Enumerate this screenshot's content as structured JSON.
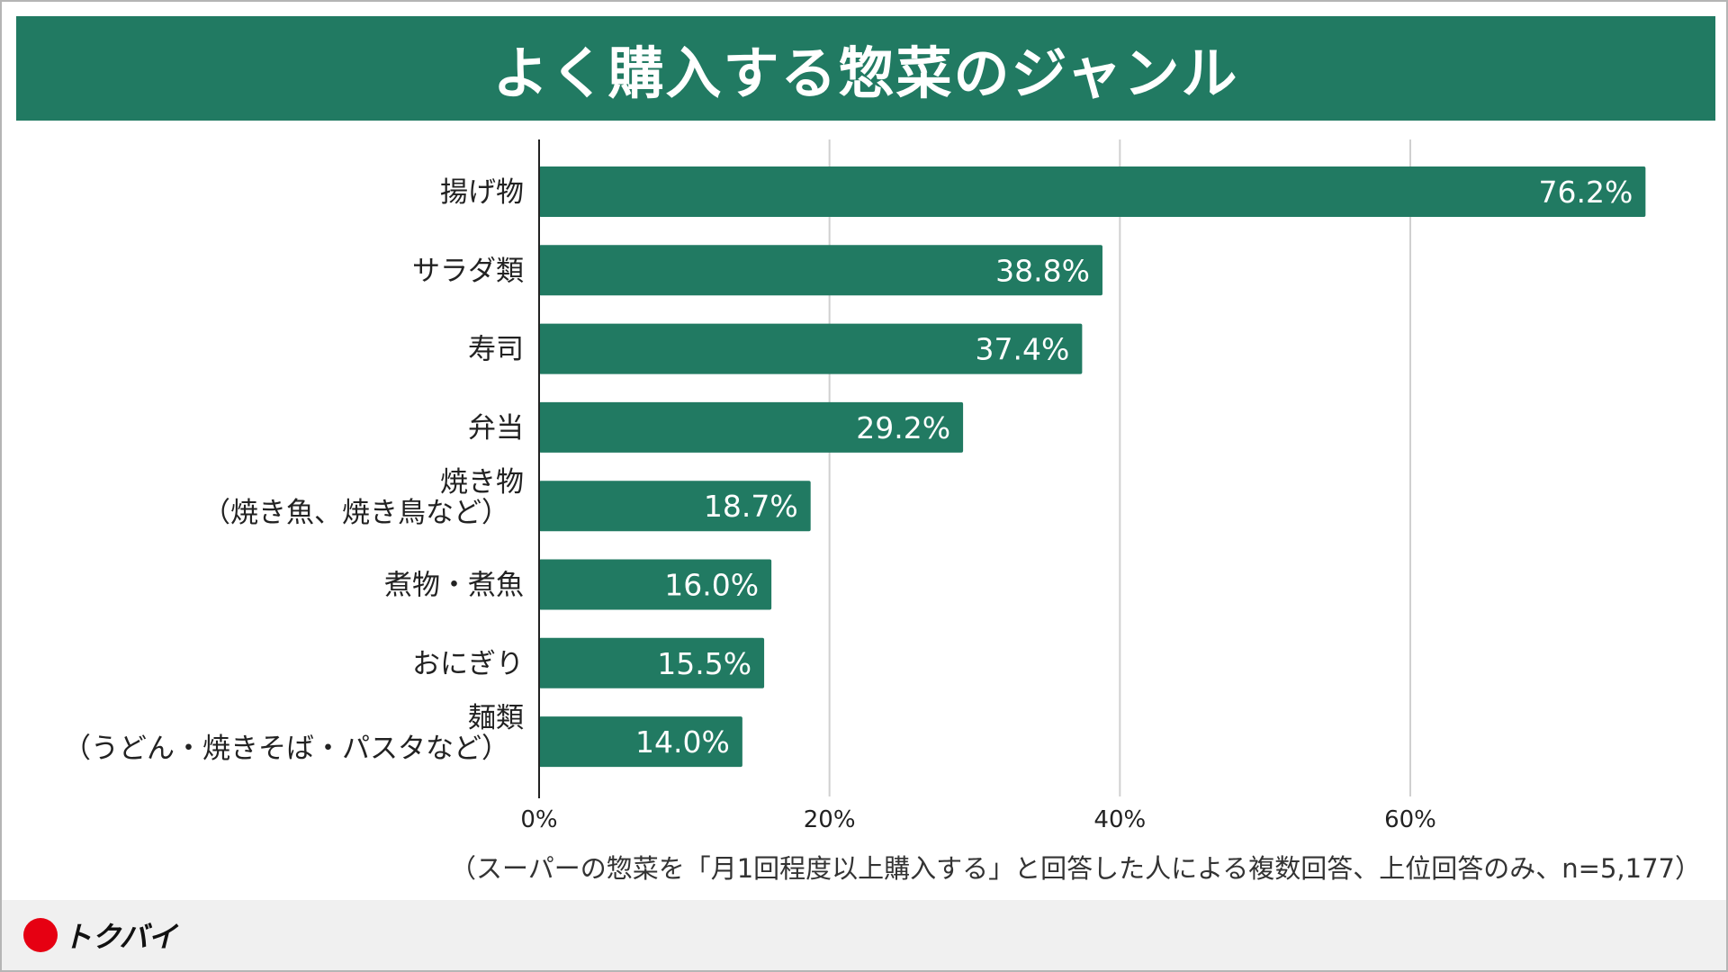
{
  "title": "よく購入する惣菜のジャンル",
  "note": "（スーパーの惣菜を「月1回程度以上購入する」と回答した人による複数回答、上位回答のみ、n=5,177）",
  "logo": {
    "text": "トクバイ",
    "dot_color": "#e60012"
  },
  "colors": {
    "bar": "#217a62",
    "banner": "#217a62",
    "grid": "#d0d0d0",
    "axis": "#222222"
  },
  "chart_data": {
    "type": "bar",
    "orientation": "horizontal",
    "categories": [
      [
        "揚げ物"
      ],
      [
        "サラダ類"
      ],
      [
        "寿司"
      ],
      [
        "弁当"
      ],
      [
        "焼き物",
        "（焼き魚、焼き鳥など）"
      ],
      [
        "煮物・煮魚"
      ],
      [
        "おにぎり"
      ],
      [
        "麺類",
        "（うどん・焼きそば・パスタなど）"
      ]
    ],
    "values": [
      76.2,
      38.8,
      37.4,
      29.2,
      18.7,
      16.0,
      15.5,
      14.0
    ],
    "value_labels": [
      "76.2%",
      "38.8%",
      "37.4%",
      "29.2%",
      "18.7%",
      "16.0%",
      "15.5%",
      "14.0%"
    ],
    "xlim": [
      0,
      80
    ],
    "xticks": [
      0,
      20,
      40,
      60
    ],
    "xtick_labels": [
      "0%",
      "20%",
      "40%",
      "60%"
    ],
    "grid": true,
    "legend": "none"
  }
}
